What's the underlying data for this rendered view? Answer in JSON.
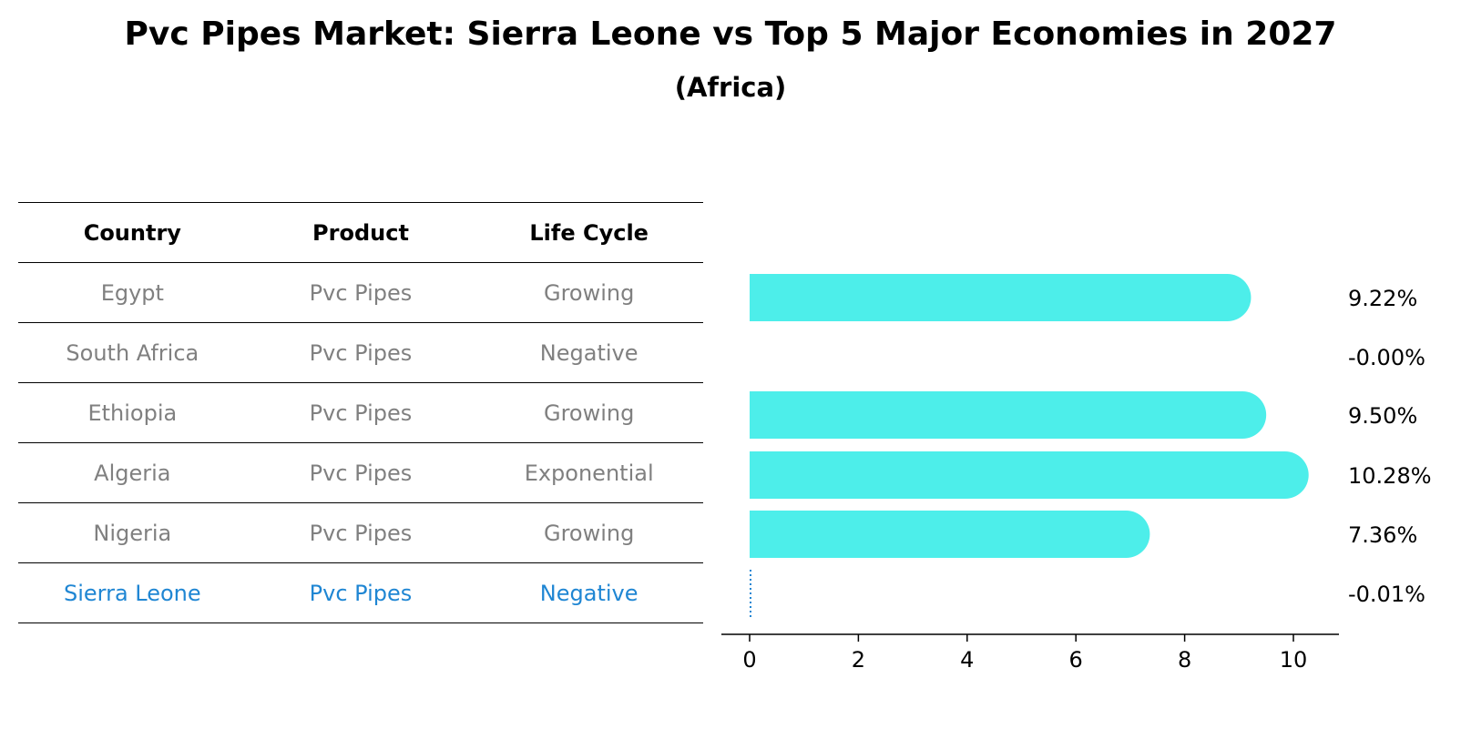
{
  "title": "Pvc Pipes Market: Sierra Leone vs Top 5 Major Economies in 2027",
  "subtitle": "(Africa)",
  "table": {
    "headers": [
      "Country",
      "Product",
      "Life Cycle"
    ],
    "rows": [
      {
        "country": "Egypt",
        "product": "Pvc Pipes",
        "life_cycle": "Growing",
        "highlight": false
      },
      {
        "country": "South Africa",
        "product": "Pvc Pipes",
        "life_cycle": "Negative",
        "highlight": false
      },
      {
        "country": "Ethiopia",
        "product": "Pvc Pipes",
        "life_cycle": "Growing",
        "highlight": false
      },
      {
        "country": "Algeria",
        "product": "Pvc Pipes",
        "life_cycle": "Exponential",
        "highlight": false
      },
      {
        "country": "Nigeria",
        "product": "Pvc Pipes",
        "life_cycle": "Growing",
        "highlight": false
      },
      {
        "country": "Sierra Leone",
        "product": "Pvc Pipes",
        "life_cycle": "Negative",
        "highlight": true
      }
    ]
  },
  "colors": {
    "bar": "#4deeea",
    "highlight": "#1f86d3",
    "muted_text": "#808080",
    "axis": "#000000"
  },
  "chart_data": {
    "type": "bar",
    "orientation": "horizontal",
    "categories": [
      "Egypt",
      "South Africa",
      "Ethiopia",
      "Algeria",
      "Nigeria",
      "Sierra Leone"
    ],
    "values": [
      9.22,
      -0.0,
      9.5,
      10.28,
      7.36,
      -0.01
    ],
    "value_labels": [
      "9.22%",
      "-0.00%",
      "9.50%",
      "10.28%",
      "7.36%",
      "-0.01%"
    ],
    "xlim": [
      -0.5,
      10.8
    ],
    "xticks": [
      0,
      2,
      4,
      6,
      8,
      10
    ],
    "xtick_labels": [
      "0",
      "2",
      "4",
      "6",
      "8",
      "10"
    ],
    "title": "",
    "xlabel": "",
    "ylabel": "",
    "grid": false
  }
}
